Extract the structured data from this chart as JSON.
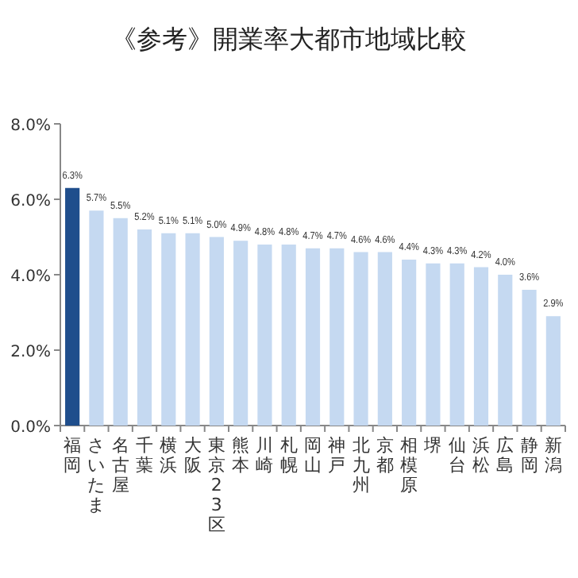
{
  "chart_data": {
    "type": "bar",
    "title": "《参考》開業率大都市地域比較",
    "categories": [
      "福岡",
      "さいたま",
      "名古屋",
      "千葉",
      "横浜",
      "大阪",
      "東京23区",
      "熊本",
      "川崎",
      "札幌",
      "岡山",
      "神戸",
      "北九州",
      "京都",
      "相模原",
      "堺",
      "仙台",
      "浜松",
      "広島",
      "静岡",
      "新潟"
    ],
    "values": [
      6.3,
      5.7,
      5.5,
      5.2,
      5.1,
      5.1,
      5.0,
      4.9,
      4.8,
      4.8,
      4.7,
      4.7,
      4.6,
      4.6,
      4.4,
      4.3,
      4.3,
      4.2,
      4.0,
      3.6,
      2.9
    ],
    "colors": [
      "#1f4e8c",
      "#c5d9f1",
      "#c5d9f1",
      "#c5d9f1",
      "#c5d9f1",
      "#c5d9f1",
      "#c5d9f1",
      "#c5d9f1",
      "#c5d9f1",
      "#c5d9f1",
      "#c5d9f1",
      "#c5d9f1",
      "#c5d9f1",
      "#c5d9f1",
      "#c5d9f1",
      "#c5d9f1",
      "#c5d9f1",
      "#c5d9f1",
      "#c5d9f1",
      "#c5d9f1",
      "#c5d9f1"
    ],
    "value_labels": [
      "6.3%",
      "5.7%",
      "5.5%",
      "5.2%",
      "5.1%",
      "5.1%",
      "5.0%",
      "4.9%",
      "4.8%",
      "4.8%",
      "4.7%",
      "4.7%",
      "4.6%",
      "4.6%",
      "4.4%",
      "4.3%",
      "4.3%",
      "4.2%",
      "4.0%",
      "3.6%",
      "2.9%"
    ],
    "ylim": [
      0,
      8
    ],
    "yticks": [
      {
        "value": 0,
        "label": "0.0%"
      },
      {
        "value": 2,
        "label": "2.0%"
      },
      {
        "value": 4,
        "label": "4.0%"
      },
      {
        "value": 6,
        "label": "6.0%"
      },
      {
        "value": 8,
        "label": "8.0%"
      }
    ],
    "grid": false
  }
}
